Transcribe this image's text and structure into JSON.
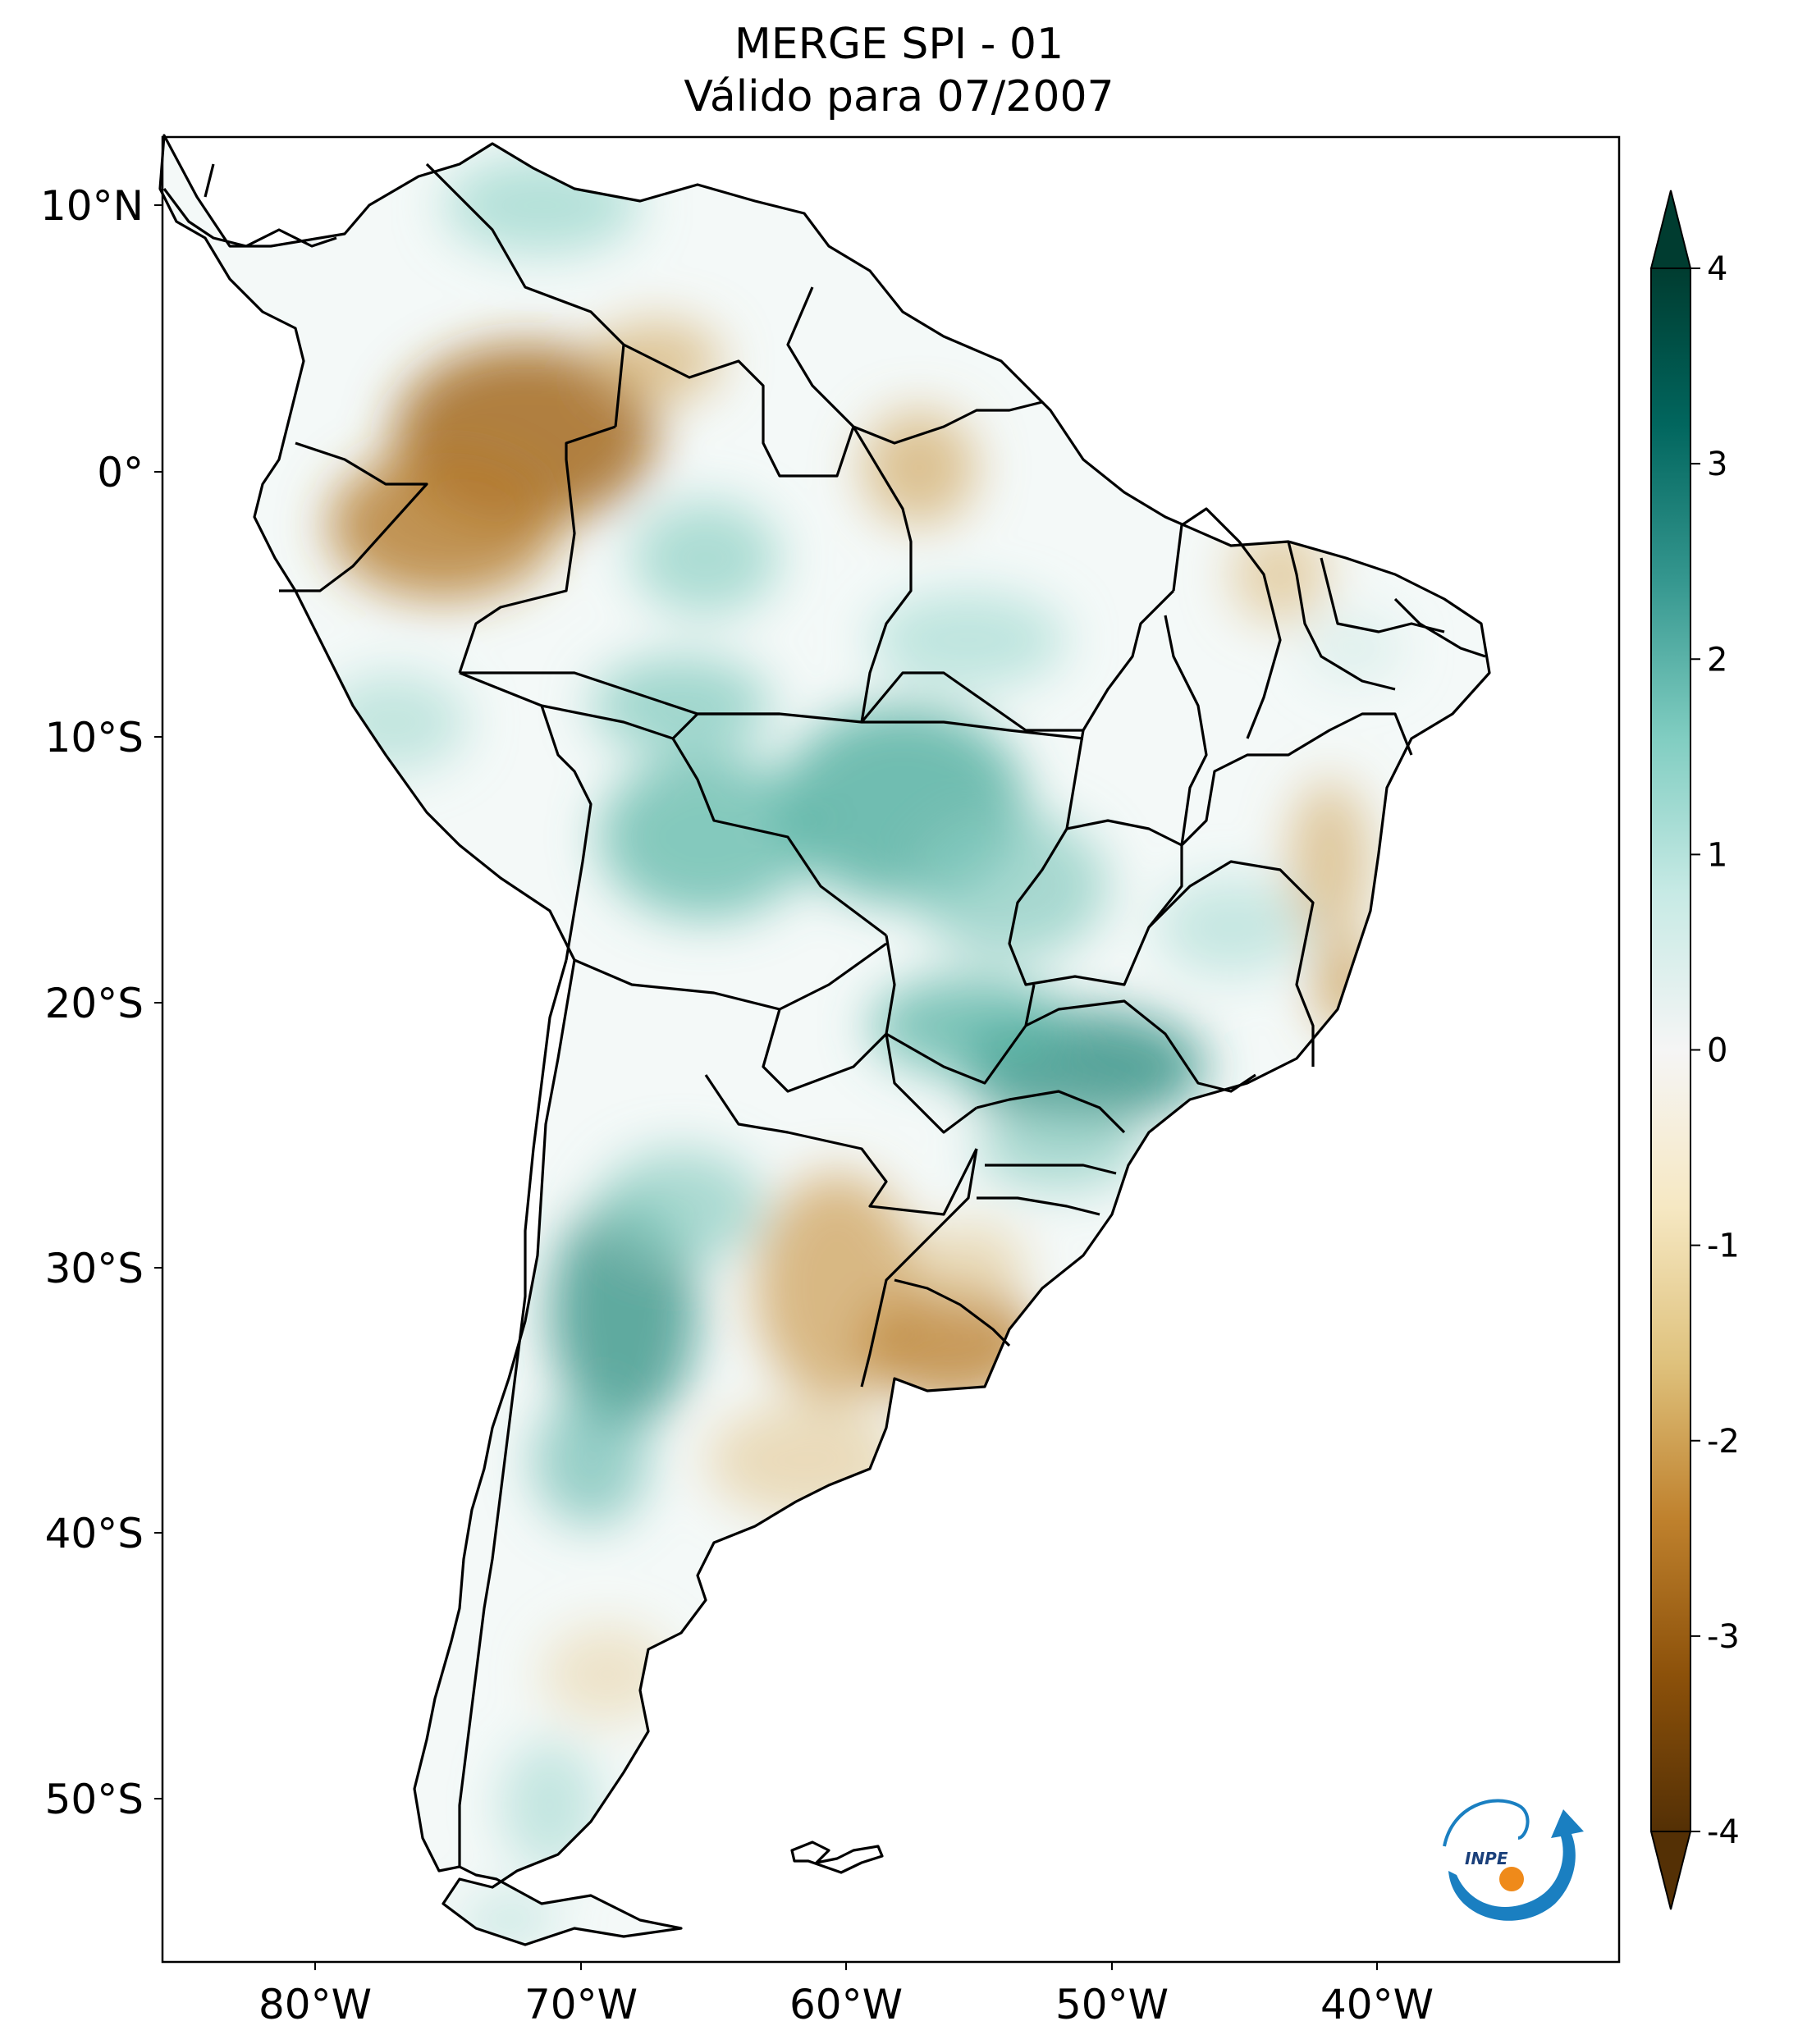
{
  "title": {
    "line1": "MERGE   SPI - 01",
    "line2": "Válido para 07/2007"
  },
  "axes": {
    "lat_ticks": [
      "10°N",
      "0°",
      "10°S",
      "20°S",
      "30°S",
      "40°S",
      "50°S"
    ],
    "lon_ticks": [
      "80°W",
      "70°W",
      "60°W",
      "50°W",
      "40°W"
    ]
  },
  "colorbar": {
    "ticks": [
      "4",
      "3",
      "2",
      "1",
      "0",
      "-1",
      "-2",
      "-3",
      "-4"
    ],
    "min": -4,
    "max": 4,
    "colors": [
      "#543005",
      "#8c510a",
      "#bf812d",
      "#dfc27d",
      "#f6e8c3",
      "#f5f5f5",
      "#c7eae5",
      "#80cdc1",
      "#35978f",
      "#01665e",
      "#003c30"
    ]
  },
  "logo": {
    "text": "INPE"
  }
}
